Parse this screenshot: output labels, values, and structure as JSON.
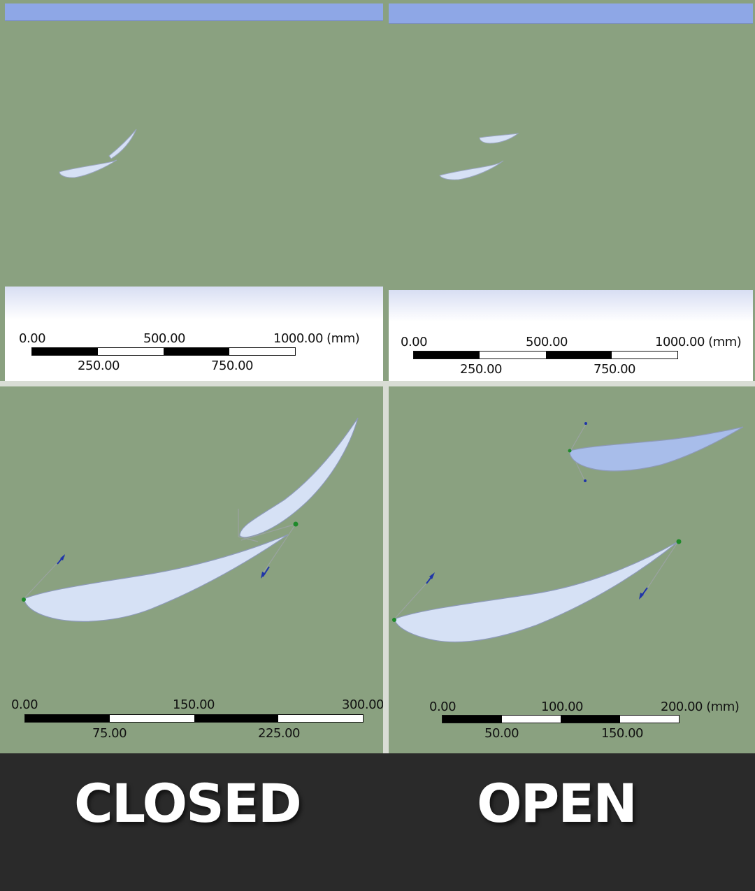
{
  "panels": {
    "closed": {
      "overview_scale": {
        "labels_top": [
          "0.00",
          "500.00",
          "1000.00 (mm)"
        ],
        "labels_bottom": [
          "250.00",
          "750.00"
        ]
      },
      "detail_scale": {
        "labels_top": [
          "0.00",
          "150.00",
          "300.00"
        ],
        "labels_bottom": [
          "75.00",
          "225.00"
        ]
      }
    },
    "open": {
      "overview_scale": {
        "labels_top": [
          "0.00",
          "500.00",
          "1000.00 (mm)"
        ],
        "labels_bottom": [
          "250.00",
          "750.00"
        ]
      },
      "detail_scale": {
        "labels_top": [
          "0.00",
          "100.00",
          "200.00 (mm)"
        ],
        "labels_bottom": [
          "50.00",
          "150.00"
        ]
      }
    }
  },
  "captions": {
    "closed": "CLOSED",
    "open": "OPEN"
  },
  "colors": {
    "viewport_bg": "#8aa180",
    "airfoil_fill": "#d6e1f5",
    "airfoil_fill_open_flap": "#a8bdea",
    "header_bar": "#8ea7e6",
    "caption_band": "#2a2a2a",
    "vector_arrow": "#1f35a8",
    "node_marker": "#1f8a2a"
  }
}
